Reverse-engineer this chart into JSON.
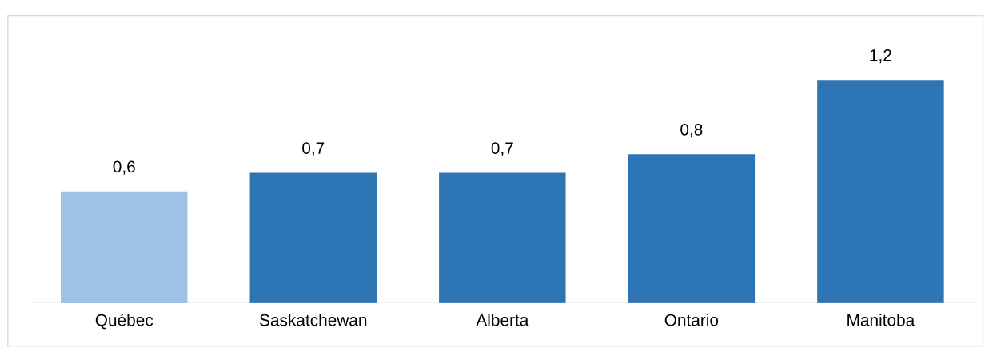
{
  "chart_data": {
    "type": "bar",
    "categories": [
      "Québec",
      "Saskatchewan",
      "Alberta",
      "Ontario",
      "Manitoba"
    ],
    "values": [
      0.6,
      0.7,
      0.7,
      0.8,
      1.2
    ],
    "value_labels": [
      "0,6",
      "0,7",
      "0,7",
      "0,8",
      "1,2"
    ],
    "colors": [
      "#9dc3e6",
      "#2e75b6",
      "#2e75b6",
      "#2e75b6",
      "#2e75b6"
    ],
    "grid": false,
    "legend": false
  }
}
